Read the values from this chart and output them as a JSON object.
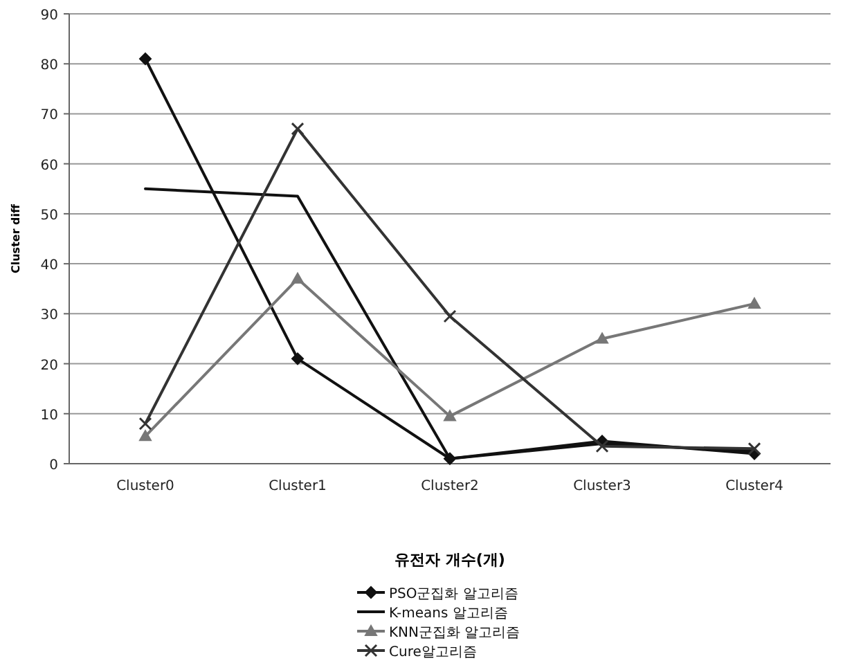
{
  "chart_data": {
    "type": "line",
    "xlabel": "유전자 개수(개)",
    "ylabel": "Cluster diff",
    "categories": [
      "Cluster0",
      "Cluster1",
      "Cluster2",
      "Cluster3",
      "Cluster4"
    ],
    "series": [
      {
        "name": "PSO군집화 알고리즘",
        "color": "#111111",
        "marker": "diamond",
        "values": [
          81,
          21,
          1,
          4.5,
          2
        ]
      },
      {
        "name": "K-means 알고리즘",
        "color": "#111111",
        "marker": "none",
        "values": [
          55,
          53.5,
          1,
          4,
          2.5
        ]
      },
      {
        "name": "KNN군집화 알고리즘",
        "color": "#777777",
        "marker": "triangle",
        "values": [
          5.5,
          37,
          9.5,
          25,
          32
        ]
      },
      {
        "name": "Cure알고리즘",
        "color": "#333333",
        "marker": "cross",
        "values": [
          8,
          67,
          29.5,
          3.5,
          3
        ]
      }
    ],
    "ylim": [
      0,
      90
    ],
    "yticks": [
      0,
      10,
      20,
      30,
      40,
      50,
      60,
      70,
      80,
      90
    ],
    "grid": "y",
    "legend": "bottom",
    "line_style": "solid"
  }
}
